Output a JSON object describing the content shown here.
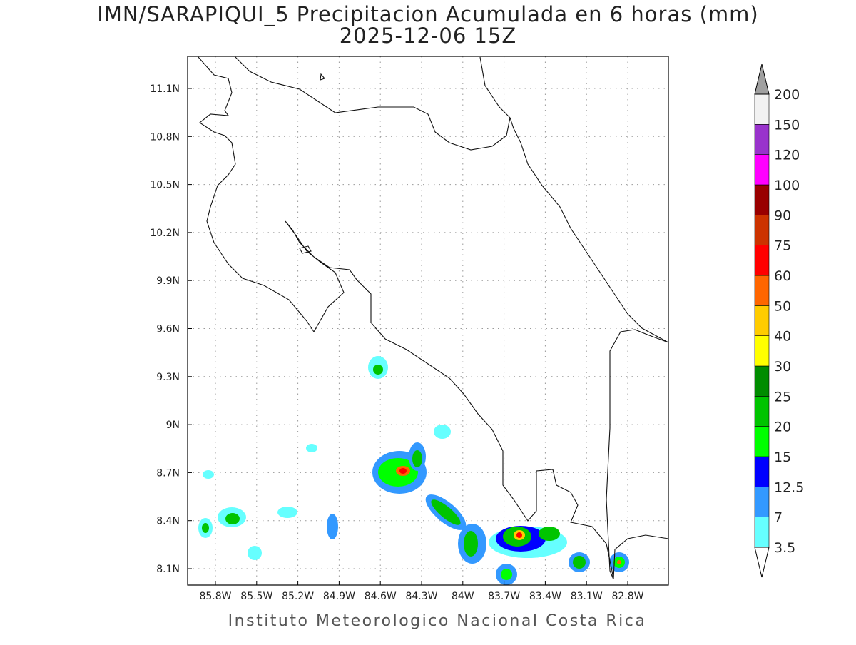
{
  "header": {
    "title": "IMN/SARAPIQUI_5 Precipitacion Acumulada en 6 horas (mm)",
    "subtitle": "2025-12-06 15Z"
  },
  "map": {
    "x_labels": [
      "85.8W",
      "85.5W",
      "85.2W",
      "84.9W",
      "84.6W",
      "84.3W",
      "84W",
      "83.7W",
      "83.4W",
      "83.1W",
      "82.8W"
    ],
    "y_labels": [
      "11.1N",
      "10.8N",
      "10.5N",
      "10.2N",
      "9.9N",
      "9.6N",
      "9.3N",
      "9N",
      "8.7N",
      "8.4N",
      "8.1N"
    ]
  },
  "colorbar": {
    "labels": [
      3.5,
      7,
      12.5,
      15,
      20,
      25,
      30,
      40,
      50,
      60,
      75,
      90,
      100,
      120,
      150,
      200
    ],
    "colors": [
      "#ffffff",
      "#66ffff",
      "#3399ff",
      "#0000ff",
      "#00ff00",
      "#00c400",
      "#008c00",
      "#ffff00",
      "#ffcc00",
      "#ff6600",
      "#ff0000",
      "#cc3300",
      "#990000",
      "#ff00ff",
      "#9933cc",
      "#f2f2f2",
      "#a0a0a0"
    ]
  },
  "footer": "Instituto Meteorologico Nacional Costa Rica"
}
